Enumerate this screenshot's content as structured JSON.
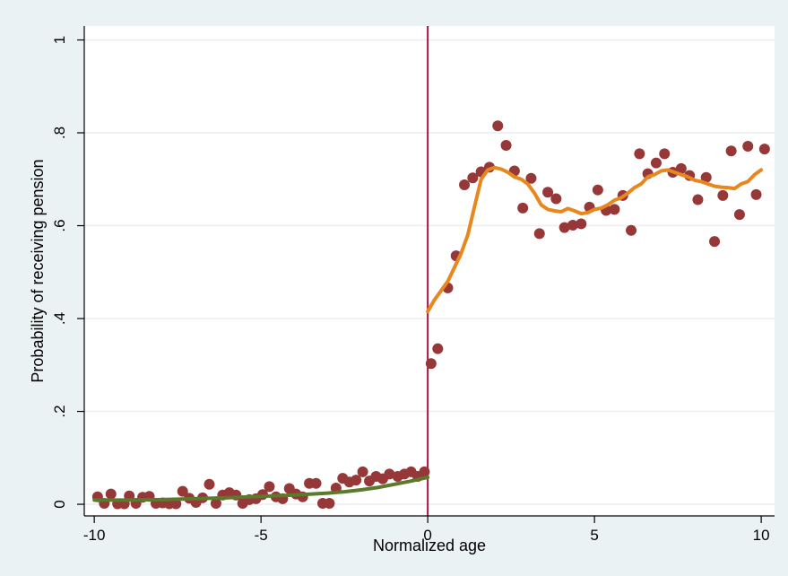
{
  "chart_data": {
    "type": "scatter",
    "title": "",
    "xlabel": "Normalized age",
    "ylabel": "Probability of receiving pension",
    "xlim": [
      -10.3,
      10.4
    ],
    "ylim": [
      -0.025,
      1.03
    ],
    "grid": true,
    "legend": "none",
    "x_ticks": [
      -10,
      -5,
      0,
      5,
      10
    ],
    "x_tick_labels": [
      "-10",
      "-5",
      "0",
      "5",
      "10"
    ],
    "y_ticks": [
      0,
      0.2,
      0.4,
      0.6,
      0.8,
      1
    ],
    "y_tick_labels": [
      "0",
      ".2",
      ".4",
      ".6",
      ".8",
      "1"
    ],
    "cutoff_x": 0,
    "colors": {
      "background": "#eaf2f3",
      "plot_area": "#ffffff",
      "grid": "#e9eef0",
      "points": "#963738",
      "fit_left": "#5b7a2b",
      "fit_right": "#e8871e",
      "cutoff": "#a51246"
    },
    "series": [
      {
        "kind": "scatter",
        "x": [
          -9.9,
          -9.7,
          -9.5,
          -9.3,
          -9.1,
          -8.95,
          -8.75,
          -8.55,
          -8.35,
          -8.15,
          -7.95,
          -7.75,
          -7.55,
          -7.35,
          -7.15,
          -6.95,
          -6.75,
          -6.55,
          -6.35,
          -6.15,
          -5.95,
          -5.75,
          -5.55,
          -5.35,
          -5.15,
          -4.95,
          -4.75,
          -4.55,
          -4.35,
          -4.15,
          -3.95,
          -3.75,
          -3.55,
          -3.35,
          -3.15,
          -2.95,
          -2.75,
          -2.55,
          -2.35,
          -2.15,
          -1.95,
          -1.75,
          -1.55,
          -1.35,
          -1.15,
          -0.9,
          -0.7,
          -0.5,
          -0.3,
          -0.1,
          0.1,
          0.3,
          0.6,
          0.85,
          1.1,
          1.35,
          1.6,
          1.85,
          2.1,
          2.35,
          2.6,
          2.85,
          3.1,
          3.35,
          3.6,
          3.85,
          4.1,
          4.35,
          4.6,
          4.85,
          5.1,
          5.35,
          5.6,
          5.85,
          6.1,
          6.35,
          6.6,
          6.85,
          7.1,
          7.35,
          7.6,
          7.85,
          8.1,
          8.35,
          8.6,
          8.85,
          9.1,
          9.35,
          9.6,
          9.85,
          10.1
        ],
        "y": [
          0.016,
          0.002,
          0.022,
          0.001,
          0.001,
          0.018,
          0.002,
          0.015,
          0.017,
          0.002,
          0.003,
          0.001,
          0.001,
          0.028,
          0.013,
          0.004,
          0.014,
          0.043,
          0.002,
          0.02,
          0.025,
          0.02,
          0.002,
          0.01,
          0.012,
          0.021,
          0.038,
          0.016,
          0.012,
          0.034,
          0.022,
          0.016,
          0.045,
          0.045,
          0.002,
          0.002,
          0.035,
          0.056,
          0.048,
          0.052,
          0.07,
          0.05,
          0.06,
          0.055,
          0.065,
          0.06,
          0.065,
          0.07,
          0.06,
          0.07,
          0.303,
          0.335,
          0.466,
          0.535,
          0.688,
          0.703,
          0.716,
          0.726,
          0.815,
          0.773,
          0.718,
          0.638,
          0.702,
          0.583,
          0.672,
          0.658,
          0.596,
          0.601,
          0.604,
          0.64,
          0.677,
          0.633,
          0.635,
          0.665,
          0.59,
          0.755,
          0.712,
          0.735,
          0.755,
          0.715,
          0.723,
          0.708,
          0.656,
          0.704,
          0.566,
          0.665,
          0.761,
          0.624,
          0.771,
          0.667,
          0.765
        ]
      },
      {
        "kind": "line",
        "side": "left",
        "x": [
          -10,
          -9,
          -8,
          -7,
          -6,
          -5,
          -4,
          -3,
          -2.5,
          -2,
          -1.5,
          -1,
          -0.5,
          0
        ],
        "y": [
          0.009,
          0.009,
          0.01,
          0.012,
          0.014,
          0.017,
          0.02,
          0.024,
          0.027,
          0.031,
          0.036,
          0.043,
          0.05,
          0.058
        ]
      },
      {
        "kind": "line",
        "side": "right",
        "x": [
          0,
          0.2,
          0.4,
          0.6,
          0.8,
          1.0,
          1.2,
          1.4,
          1.6,
          1.8,
          2.0,
          2.2,
          2.4,
          2.6,
          2.8,
          3.0,
          3.2,
          3.4,
          3.6,
          3.8,
          4.0,
          4.2,
          4.4,
          4.6,
          4.8,
          5.0,
          5.2,
          5.4,
          5.6,
          5.8,
          6.0,
          6.2,
          6.4,
          6.6,
          6.8,
          7.0,
          7.2,
          7.4,
          7.6,
          7.8,
          8.0,
          8.2,
          8.4,
          8.6,
          8.8,
          9.0,
          9.2,
          9.4,
          9.6,
          9.8,
          10.0
        ],
        "y": [
          0.415,
          0.44,
          0.46,
          0.48,
          0.51,
          0.54,
          0.58,
          0.64,
          0.7,
          0.72,
          0.725,
          0.722,
          0.715,
          0.705,
          0.7,
          0.69,
          0.67,
          0.645,
          0.635,
          0.632,
          0.63,
          0.637,
          0.632,
          0.626,
          0.628,
          0.635,
          0.638,
          0.645,
          0.655,
          0.66,
          0.67,
          0.682,
          0.69,
          0.705,
          0.71,
          0.718,
          0.72,
          0.715,
          0.71,
          0.705,
          0.698,
          0.695,
          0.69,
          0.685,
          0.683,
          0.682,
          0.68,
          0.69,
          0.695,
          0.71,
          0.72
        ]
      }
    ]
  }
}
